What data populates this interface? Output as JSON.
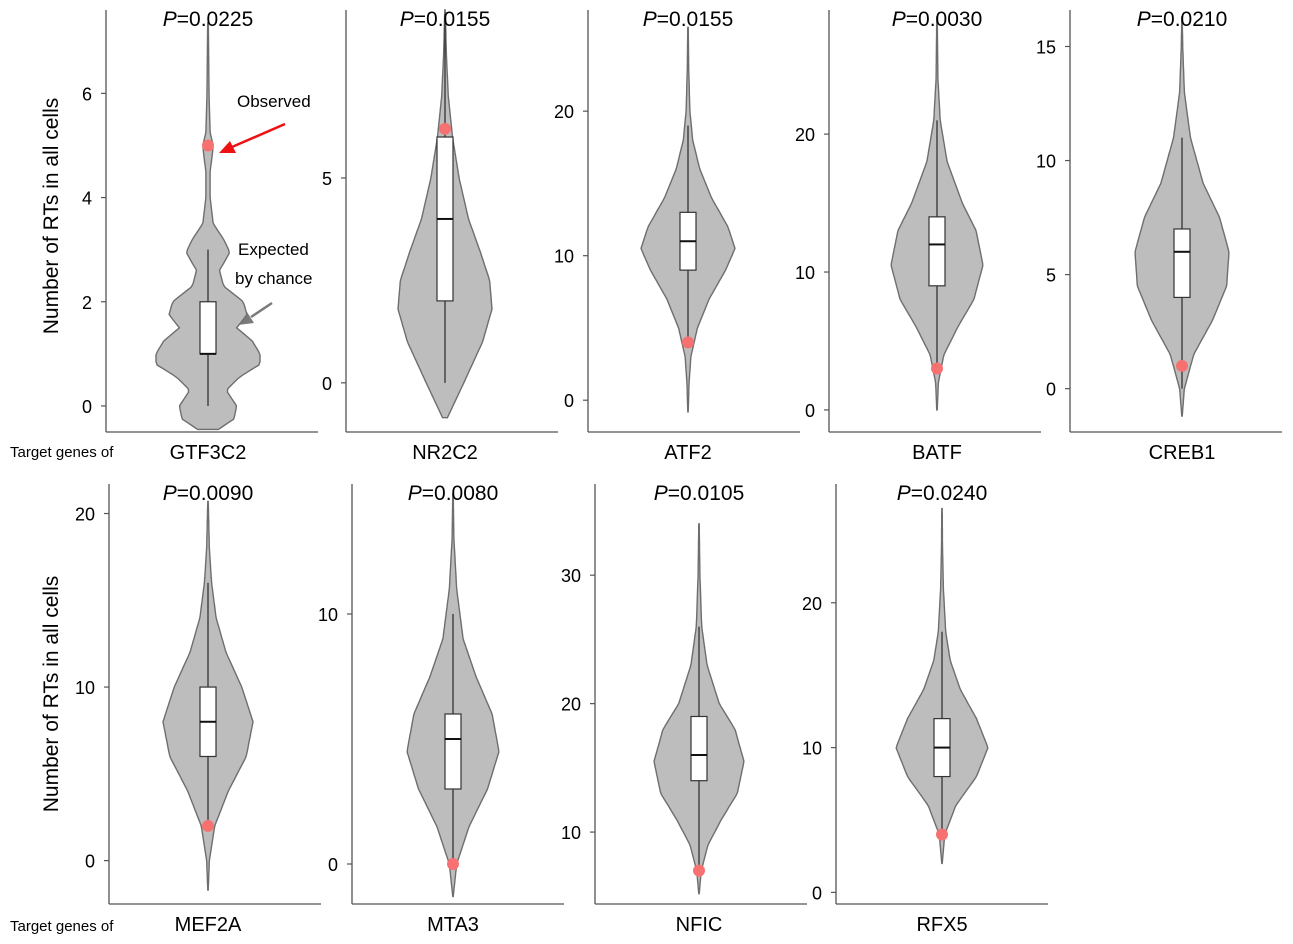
{
  "row_labels": {
    "target_prefix": "Target genes of",
    "ylabel": "Number of RTs in all cells"
  },
  "annotations": {
    "observed": "Observed",
    "expected_line1": "Expected",
    "expected_line2": "by chance"
  },
  "colors": {
    "violin_fill": "#bdbdbd",
    "violin_stroke": "#6e6e6e",
    "box_fill": "#ffffff",
    "observed_point": "#f87171",
    "observed_arrow": "#ee1111",
    "expected_arrow": "#7a7a7a"
  },
  "chart_data": [
    {
      "type": "violin",
      "gene": "GTF3C2",
      "p_label": "P",
      "p_value": "=0.0225",
      "yticks": [
        0,
        2,
        4,
        6
      ],
      "ylim": [
        -0.5,
        7.6
      ],
      "box": {
        "q1": 1,
        "median": 1,
        "q3": 2,
        "whisker_low": 0,
        "whisker_high": 3
      },
      "range": [
        -0.45,
        7.35
      ],
      "observed": 5,
      "density": [
        [
          -0.45,
          0.2
        ],
        [
          -0.25,
          0.5
        ],
        [
          0,
          0.55
        ],
        [
          0.3,
          0.35
        ],
        [
          0.55,
          0.6
        ],
        [
          0.8,
          1.0
        ],
        [
          1.0,
          1.0
        ],
        [
          1.25,
          0.85
        ],
        [
          1.5,
          0.55
        ],
        [
          1.75,
          0.75
        ],
        [
          2.0,
          0.68
        ],
        [
          2.3,
          0.3
        ],
        [
          2.6,
          0.22
        ],
        [
          2.95,
          0.42
        ],
        [
          3.2,
          0.3
        ],
        [
          3.5,
          0.1
        ],
        [
          4.0,
          0.04
        ],
        [
          4.5,
          0.04
        ],
        [
          4.8,
          0.08
        ],
        [
          5.0,
          0.1
        ],
        [
          5.25,
          0.04
        ],
        [
          5.6,
          0.03
        ],
        [
          6.0,
          0.02
        ],
        [
          6.5,
          0.015
        ],
        [
          7.0,
          0.01
        ],
        [
          7.35,
          0.005
        ]
      ]
    },
    {
      "type": "violin",
      "gene": "NR2C2",
      "p_label": "P",
      "p_value": "=0.0155",
      "yticks": [
        0,
        5
      ],
      "ylim": [
        -1.2,
        9.1
      ],
      "box": {
        "q1": 2,
        "median": 4,
        "q3": 6,
        "whisker_low": 0,
        "whisker_high": 9
      },
      "range": [
        -0.85,
        9.1
      ],
      "observed": 6.2,
      "density": [
        [
          -0.85,
          0.05
        ],
        [
          0,
          0.4
        ],
        [
          1,
          0.8
        ],
        [
          1.8,
          1.0
        ],
        [
          2.5,
          0.95
        ],
        [
          3.2,
          0.75
        ],
        [
          4,
          0.5
        ],
        [
          5,
          0.3
        ],
        [
          6,
          0.16
        ],
        [
          7,
          0.07
        ],
        [
          8,
          0.03
        ],
        [
          9.1,
          0.005
        ]
      ]
    },
    {
      "type": "violin",
      "gene": "ATF2",
      "p_label": "P",
      "p_value": "=0.0155",
      "yticks": [
        0,
        10,
        20
      ],
      "ylim": [
        -2.2,
        27
      ],
      "box": {
        "q1": 9,
        "median": 11,
        "q3": 13,
        "whisker_low": 4,
        "whisker_high": 19
      },
      "range": [
        -0.8,
        25.8
      ],
      "observed": 4,
      "density": [
        [
          -0.8,
          0.005
        ],
        [
          1,
          0.02
        ],
        [
          3,
          0.06
        ],
        [
          5,
          0.2
        ],
        [
          7,
          0.45
        ],
        [
          9,
          0.8
        ],
        [
          10.5,
          1.0
        ],
        [
          12,
          0.85
        ],
        [
          14,
          0.5
        ],
        [
          16,
          0.25
        ],
        [
          18,
          0.1
        ],
        [
          20,
          0.04
        ],
        [
          23,
          0.015
        ],
        [
          25.8,
          0.005
        ]
      ]
    },
    {
      "type": "violin",
      "gene": "BATF",
      "p_label": "P",
      "p_value": "=0.0030",
      "yticks": [
        0,
        10,
        20
      ],
      "ylim": [
        -1.6,
        29
      ],
      "box": {
        "q1": 9,
        "median": 12,
        "q3": 14,
        "whisker_low": 3,
        "whisker_high": 21
      },
      "range": [
        0,
        28.5
      ],
      "observed": 3,
      "density": [
        [
          0,
          0.005
        ],
        [
          2,
          0.03
        ],
        [
          4,
          0.15
        ],
        [
          6,
          0.45
        ],
        [
          8,
          0.8
        ],
        [
          10.5,
          1.0
        ],
        [
          13,
          0.85
        ],
        [
          15,
          0.55
        ],
        [
          18,
          0.22
        ],
        [
          21,
          0.07
        ],
        [
          24,
          0.02
        ],
        [
          28.5,
          0.005
        ]
      ]
    },
    {
      "type": "violin",
      "gene": "CREB1",
      "p_label": "P",
      "p_value": "=0.0210",
      "yticks": [
        0,
        5,
        10,
        15
      ],
      "ylim": [
        -1.9,
        16.6
      ],
      "box": {
        "q1": 4,
        "median": 6,
        "q3": 7,
        "whisker_low": 0,
        "whisker_high": 11
      },
      "range": [
        -1.2,
        16.3
      ],
      "observed": 1,
      "density": [
        [
          -1.2,
          0.005
        ],
        [
          0,
          0.05
        ],
        [
          1.5,
          0.25
        ],
        [
          3,
          0.65
        ],
        [
          4.5,
          0.95
        ],
        [
          6,
          1.0
        ],
        [
          7.5,
          0.8
        ],
        [
          9,
          0.45
        ],
        [
          11,
          0.18
        ],
        [
          13,
          0.05
        ],
        [
          15,
          0.015
        ],
        [
          16.3,
          0.005
        ]
      ]
    },
    {
      "type": "violin",
      "gene": "MEF2A",
      "p_label": "P",
      "p_value": "=0.0090",
      "yticks": [
        0,
        10,
        20
      ],
      "ylim": [
        -2.5,
        21.7
      ],
      "box": {
        "q1": 6,
        "median": 8,
        "q3": 10,
        "whisker_low": 2,
        "whisker_high": 16
      },
      "range": [
        -1.7,
        20.7
      ],
      "observed": 2,
      "density": [
        [
          -1.7,
          0.005
        ],
        [
          0,
          0.03
        ],
        [
          2,
          0.15
        ],
        [
          4,
          0.45
        ],
        [
          6,
          0.85
        ],
        [
          8,
          1.0
        ],
        [
          10,
          0.75
        ],
        [
          12,
          0.4
        ],
        [
          14,
          0.18
        ],
        [
          16,
          0.08
        ],
        [
          18,
          0.03
        ],
        [
          20.7,
          0.005
        ]
      ]
    },
    {
      "type": "violin",
      "gene": "MTA3",
      "p_label": "P",
      "p_value": "=0.0080",
      "yticks": [
        0,
        10
      ],
      "ylim": [
        -1.6,
        15.2
      ],
      "box": {
        "q1": 3,
        "median": 5,
        "q3": 6,
        "whisker_low": 0,
        "whisker_high": 10
      },
      "range": [
        -1.3,
        14.8
      ],
      "observed": 0,
      "density": [
        [
          -1.3,
          0.005
        ],
        [
          0,
          0.08
        ],
        [
          1.5,
          0.35
        ],
        [
          3,
          0.75
        ],
        [
          4.5,
          1.0
        ],
        [
          6,
          0.85
        ],
        [
          7.5,
          0.5
        ],
        [
          9,
          0.22
        ],
        [
          11,
          0.08
        ],
        [
          13,
          0.02
        ],
        [
          14.8,
          0.005
        ]
      ]
    },
    {
      "type": "violin",
      "gene": "NFIC",
      "p_label": "P",
      "p_value": "=0.0105",
      "yticks": [
        10,
        20,
        30
      ],
      "ylim": [
        4.4,
        37.1
      ],
      "box": {
        "q1": 14,
        "median": 16,
        "q3": 19,
        "whisker_low": 7,
        "whisker_high": 26
      },
      "range": [
        5.2,
        34
      ],
      "observed": 7,
      "density": [
        [
          5.2,
          0.005
        ],
        [
          7,
          0.05
        ],
        [
          9,
          0.2
        ],
        [
          11,
          0.5
        ],
        [
          13,
          0.85
        ],
        [
          15.5,
          1.0
        ],
        [
          18,
          0.8
        ],
        [
          20,
          0.45
        ],
        [
          23,
          0.18
        ],
        [
          26,
          0.06
        ],
        [
          30,
          0.02
        ],
        [
          34,
          0.005
        ]
      ]
    },
    {
      "type": "violin",
      "gene": "RFX5",
      "p_label": "P",
      "p_value": "=0.0240",
      "yticks": [
        0,
        10,
        20
      ],
      "ylim": [
        -0.8,
        28.2
      ],
      "box": {
        "q1": 8,
        "median": 10,
        "q3": 12,
        "whisker_low": 4,
        "whisker_high": 18
      },
      "range": [
        2,
        26.5
      ],
      "observed": 4,
      "density": [
        [
          2,
          0.005
        ],
        [
          4,
          0.06
        ],
        [
          6,
          0.3
        ],
        [
          8,
          0.75
        ],
        [
          10,
          1.0
        ],
        [
          12,
          0.75
        ],
        [
          14,
          0.4
        ],
        [
          16,
          0.18
        ],
        [
          18,
          0.08
        ],
        [
          21,
          0.03
        ],
        [
          24,
          0.01
        ],
        [
          26.5,
          0.005
        ]
      ]
    }
  ]
}
